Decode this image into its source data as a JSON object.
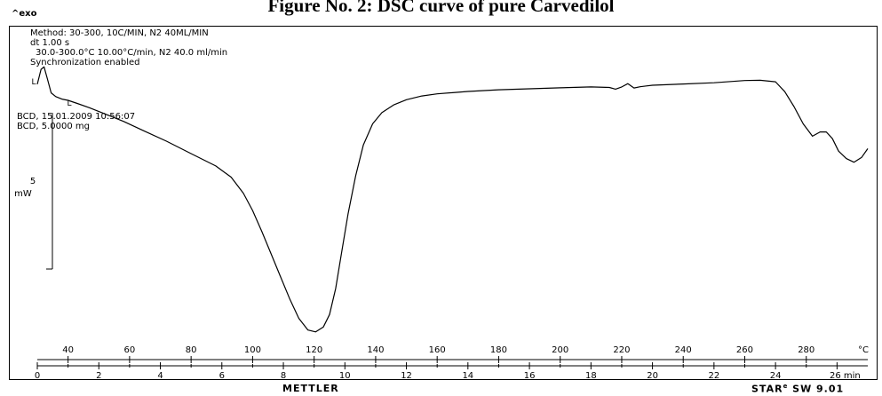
{
  "figure_title": "Figure No. 2: DSC curve of pure Carvedilol",
  "exo_label": "^exo",
  "info": {
    "method": "Method: 30-300, 10C/MIN, N2 40ML/MIN",
    "dt": "dt  1.00 s",
    "segment": "30.0-300.0°C 10.00°C/min, N2 40.0 ml/min",
    "sync": "Synchronization enabled",
    "sample_date": "BCD, 15.01.2009 10:56:07",
    "sample_mass": "BCD, 5.0000 mg"
  },
  "scale_bar": {
    "value": "5",
    "unit": "mW"
  },
  "markers": {
    "left": "L",
    "right": "L"
  },
  "footer": {
    "brand": "METTLER",
    "software": "STAR",
    "software_mark": "e",
    "version": " SW 9.01"
  },
  "chart_data": {
    "type": "line",
    "title": "Figure No. 2: DSC curve of pure Carvedilol",
    "x_temperature_axis": {
      "unit": "°C",
      "ticks": [
        40,
        60,
        80,
        100,
        120,
        140,
        160,
        180,
        200,
        220,
        240,
        260,
        280
      ]
    },
    "x_time_axis": {
      "unit": "min",
      "label": "26 min",
      "ticks": [
        0,
        2,
        4,
        6,
        8,
        10,
        12,
        14,
        16,
        18,
        20,
        22,
        24,
        26
      ],
      "range": [
        0,
        27
      ]
    },
    "y_label": "mW",
    "y_scale_bar": 5,
    "y_range": [
      -20.3,
      2.5
    ],
    "series": [
      {
        "x": [
          0,
          0.12,
          0.22,
          0.32,
          0.45,
          0.6,
          0.8,
          1.0,
          1.3,
          1.7,
          2.2,
          2.8,
          3.5,
          4.2,
          5.0,
          5.8,
          6.3,
          6.7,
          7.0,
          7.3,
          7.6,
          7.9,
          8.2,
          8.5,
          8.8,
          9.05,
          9.3,
          9.5,
          9.7,
          9.9,
          10.1,
          10.35,
          10.6,
          10.9,
          11.2,
          11.6,
          12.0,
          12.5,
          13.0,
          14.0,
          15.0,
          16.0,
          17.0,
          18.0,
          18.6,
          18.8,
          19.0,
          19.2,
          19.4,
          19.6,
          19.8,
          20.0,
          21.0,
          22.0,
          23.0,
          23.5,
          24.0,
          24.3,
          24.6,
          24.9,
          25.2,
          25.45,
          25.65,
          25.85,
          26.05,
          26.3,
          26.55,
          26.8,
          27.0
        ],
        "y": [
          0,
          1.2,
          1.4,
          0.5,
          -0.7,
          -1.0,
          -1.2,
          -1.3,
          -1.55,
          -1.9,
          -2.4,
          -3.0,
          -3.8,
          -4.6,
          -5.6,
          -6.6,
          -7.5,
          -8.8,
          -10.2,
          -11.9,
          -13.7,
          -15.5,
          -17.3,
          -18.9,
          -19.85,
          -20.0,
          -19.6,
          -18.6,
          -16.5,
          -13.5,
          -10.5,
          -7.4,
          -4.9,
          -3.2,
          -2.3,
          -1.65,
          -1.25,
          -0.95,
          -0.78,
          -0.58,
          -0.45,
          -0.37,
          -0.29,
          -0.22,
          -0.26,
          -0.4,
          -0.22,
          0.05,
          -0.3,
          -0.2,
          -0.14,
          -0.08,
          0.02,
          0.12,
          0.3,
          0.32,
          0.2,
          -0.6,
          -1.8,
          -3.2,
          -4.2,
          -3.85,
          -3.85,
          -4.4,
          -5.4,
          -6.0,
          -6.3,
          -5.9,
          -5.2
        ]
      }
    ],
    "grid": false,
    "legend": "none"
  }
}
